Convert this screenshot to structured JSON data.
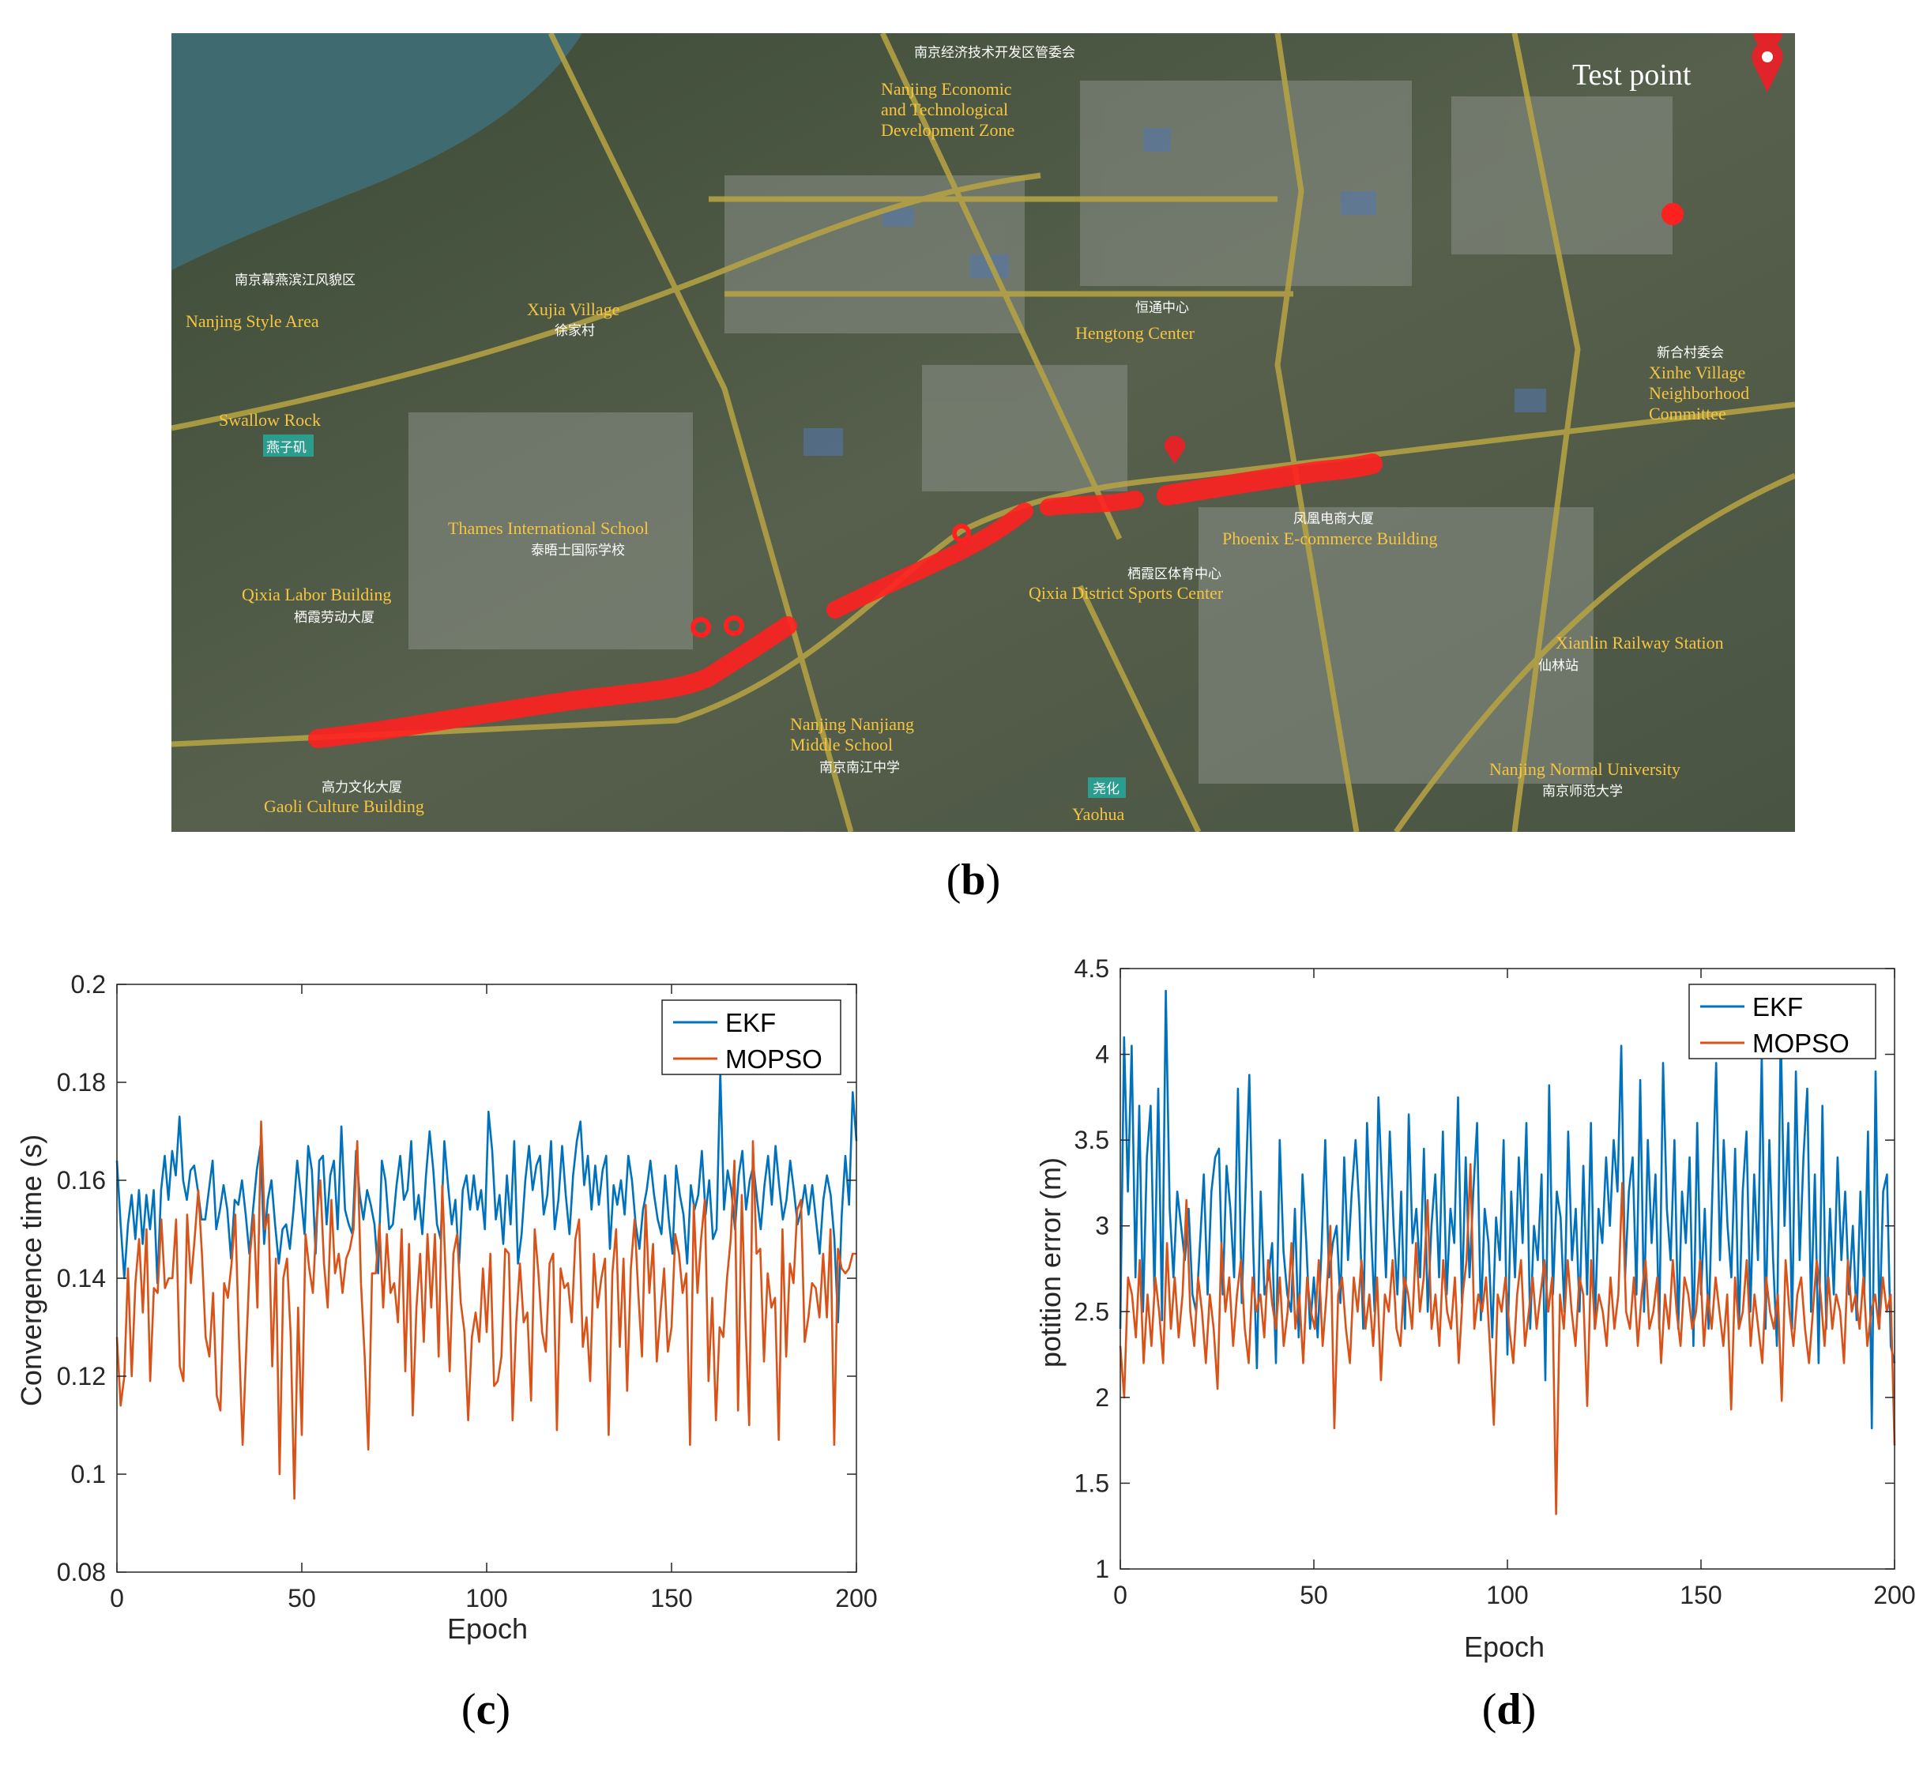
{
  "map": {
    "test_point_label": "Test point",
    "place_labels": [
      {
        "en": "Nanjing Economic and Technological Development Zone",
        "cn": "南京经济技术开发区管委会"
      },
      {
        "en": "Nanjing Style Area",
        "cn": "南京幕燕滨江风貌区"
      },
      {
        "en": "Xujia Village",
        "cn": "徐家村"
      },
      {
        "en": "Swallow Rock",
        "cn": "燕子矶"
      },
      {
        "en": "Hengtong Center",
        "cn": "恒通中心"
      },
      {
        "en": "Xinhe Village Neighborhood Committee",
        "cn": "新合村委会"
      },
      {
        "en": "Thames International School",
        "cn": "泰晤士国际学校"
      },
      {
        "en": "Phoenix E-commerce Building",
        "cn": "凤凰电商大厦"
      },
      {
        "en": "Qixia Labor Building",
        "cn": "栖霞劳动大厦"
      },
      {
        "en": "Qixia District Sports Center",
        "cn": "栖霞区体育中心"
      },
      {
        "en": "Xianlin Railway Station",
        "cn": "仙林站"
      },
      {
        "en": "Nanjing Nanjiang Middle School",
        "cn": "南京南江中学"
      },
      {
        "en": "Nanjing Normal University",
        "cn": "南京师范大学"
      },
      {
        "en": "Gaoli Culture Building",
        "cn": "高力文化大厦"
      },
      {
        "en": "Yaohua",
        "cn": "尧化"
      }
    ],
    "caption": "b"
  },
  "colors": {
    "ekf": "#0072BD",
    "mopso": "#D95319",
    "track": "#ff2020"
  },
  "chart_data": [
    {
      "type": "line",
      "caption": "c",
      "xlabel": "Epoch",
      "ylabel": "Convergence time (s)",
      "xlim": [
        0,
        200
      ],
      "ylim": [
        0.08,
        0.2
      ],
      "xticks": [
        0,
        50,
        100,
        150,
        200
      ],
      "yticks": [
        0.08,
        0.1,
        0.12,
        0.14,
        0.16,
        0.18,
        0.2
      ],
      "legend": {
        "position": "top-right",
        "entries": [
          "EKF",
          "MOPSO"
        ]
      },
      "series": [
        {
          "name": "EKF",
          "values": [
            0.164,
            0.151,
            0.14,
            0.151,
            0.157,
            0.148,
            0.158,
            0.147,
            0.157,
            0.15,
            0.158,
            0.139,
            0.158,
            0.165,
            0.156,
            0.166,
            0.161,
            0.173,
            0.16,
            0.156,
            0.162,
            0.163,
            0.158,
            0.152,
            0.152,
            0.158,
            0.164,
            0.15,
            0.154,
            0.159,
            0.154,
            0.144,
            0.156,
            0.155,
            0.16,
            0.153,
            0.145,
            0.154,
            0.162,
            0.167,
            0.147,
            0.156,
            0.16,
            0.151,
            0.143,
            0.15,
            0.151,
            0.146,
            0.154,
            0.164,
            0.157,
            0.149,
            0.167,
            0.162,
            0.145,
            0.164,
            0.165,
            0.151,
            0.161,
            0.164,
            0.15,
            0.171,
            0.154,
            0.151,
            0.149,
            0.166,
            0.157,
            0.152,
            0.158,
            0.155,
            0.151,
            0.141,
            0.164,
            0.16,
            0.15,
            0.151,
            0.159,
            0.165,
            0.156,
            0.158,
            0.168,
            0.152,
            0.157,
            0.149,
            0.161,
            0.17,
            0.162,
            0.151,
            0.148,
            0.168,
            0.159,
            0.151,
            0.156,
            0.143,
            0.158,
            0.161,
            0.154,
            0.161,
            0.154,
            0.158,
            0.15,
            0.174,
            0.166,
            0.152,
            0.157,
            0.147,
            0.161,
            0.151,
            0.168,
            0.143,
            0.149,
            0.16,
            0.167,
            0.158,
            0.163,
            0.165,
            0.153,
            0.157,
            0.168,
            0.15,
            0.156,
            0.167,
            0.157,
            0.149,
            0.161,
            0.168,
            0.172,
            0.159,
            0.165,
            0.154,
            0.163,
            0.155,
            0.162,
            0.165,
            0.146,
            0.159,
            0.155,
            0.16,
            0.153,
            0.165,
            0.16,
            0.151,
            0.146,
            0.154,
            0.158,
            0.164,
            0.157,
            0.152,
            0.149,
            0.161,
            0.152,
            0.145,
            0.163,
            0.157,
            0.153,
            0.143,
            0.159,
            0.154,
            0.157,
            0.166,
            0.153,
            0.16,
            0.148,
            0.15,
            0.182,
            0.154,
            0.162,
            0.158,
            0.15,
            0.161,
            0.166,
            0.154,
            0.16,
            0.163,
            0.156,
            0.15,
            0.159,
            0.165,
            0.155,
            0.167,
            0.159,
            0.152,
            0.156,
            0.164,
            0.158,
            0.151,
            0.154,
            0.159,
            0.153,
            0.159,
            0.152,
            0.145,
            0.156,
            0.161,
            0.157,
            0.148,
            0.131,
            0.153,
            0.165,
            0.155,
            0.178,
            0.168
          ]
        },
        {
          "name": "MOPSO",
          "values": [
            0.128,
            0.114,
            0.12,
            0.142,
            0.12,
            0.139,
            0.148,
            0.133,
            0.15,
            0.119,
            0.138,
            0.137,
            0.152,
            0.138,
            0.14,
            0.14,
            0.152,
            0.122,
            0.119,
            0.153,
            0.139,
            0.148,
            0.158,
            0.145,
            0.128,
            0.124,
            0.137,
            0.116,
            0.113,
            0.139,
            0.136,
            0.143,
            0.153,
            0.128,
            0.106,
            0.126,
            0.145,
            0.153,
            0.134,
            0.172,
            0.15,
            0.153,
            0.122,
            0.144,
            0.1,
            0.14,
            0.144,
            0.128,
            0.095,
            0.134,
            0.108,
            0.149,
            0.142,
            0.137,
            0.152,
            0.16,
            0.143,
            0.134,
            0.156,
            0.141,
            0.145,
            0.137,
            0.144,
            0.146,
            0.15,
            0.168,
            0.139,
            0.124,
            0.105,
            0.141,
            0.141,
            0.151,
            0.134,
            0.149,
            0.137,
            0.139,
            0.131,
            0.15,
            0.121,
            0.147,
            0.112,
            0.134,
            0.145,
            0.127,
            0.149,
            0.134,
            0.149,
            0.124,
            0.159,
            0.139,
            0.121,
            0.145,
            0.149,
            0.135,
            0.129,
            0.111,
            0.128,
            0.133,
            0.127,
            0.142,
            0.129,
            0.145,
            0.118,
            0.119,
            0.124,
            0.146,
            0.145,
            0.111,
            0.131,
            0.143,
            0.131,
            0.133,
            0.115,
            0.15,
            0.141,
            0.129,
            0.125,
            0.143,
            0.145,
            0.109,
            0.142,
            0.138,
            0.139,
            0.131,
            0.148,
            0.152,
            0.126,
            0.132,
            0.119,
            0.145,
            0.134,
            0.14,
            0.144,
            0.108,
            0.141,
            0.15,
            0.126,
            0.144,
            0.117,
            0.142,
            0.152,
            0.137,
            0.124,
            0.155,
            0.137,
            0.147,
            0.123,
            0.133,
            0.142,
            0.125,
            0.13,
            0.149,
            0.145,
            0.137,
            0.141,
            0.106,
            0.155,
            0.137,
            0.148,
            0.156,
            0.119,
            0.136,
            0.111,
            0.13,
            0.128,
            0.14,
            0.148,
            0.164,
            0.113,
            0.157,
            0.131,
            0.11,
            0.168,
            0.145,
            0.146,
            0.123,
            0.141,
            0.134,
            0.136,
            0.107,
            0.15,
            0.124,
            0.143,
            0.139,
            0.154,
            0.156,
            0.127,
            0.132,
            0.139,
            0.138,
            0.132,
            0.145,
            0.132,
            0.15,
            0.106,
            0.146,
            0.142,
            0.141,
            0.142,
            0.145,
            0.145
          ]
        }
      ]
    },
    {
      "type": "line",
      "caption": "d",
      "xlabel": "Epoch",
      "ylabel": "potition error (m)",
      "xlim": [
        0,
        200
      ],
      "ylim": [
        1,
        4.5
      ],
      "xticks": [
        0,
        50,
        100,
        150,
        200
      ],
      "yticks": [
        1,
        1.5,
        2,
        2.5,
        3,
        3.5,
        4,
        4.5
      ],
      "legend": {
        "position": "top-right",
        "entries": [
          "EKF",
          "MOPSO"
        ]
      },
      "series": [
        {
          "name": "EKF",
          "values": [
            2.4,
            4.1,
            3.2,
            4.05,
            2.7,
            3.7,
            2.5,
            3.4,
            3.7,
            2.6,
            3.8,
            2.45,
            4.37,
            3.1,
            2.7,
            3.2,
            3.0,
            2.8,
            3.1,
            2.6,
            2.5,
            2.9,
            3.3,
            2.6,
            3.2,
            3.4,
            3.45,
            2.6,
            3.35,
            3.1,
            2.7,
            3.8,
            2.55,
            3.2,
            3.88,
            2.9,
            2.17,
            3.2,
            2.6,
            2.7,
            2.9,
            2.2,
            3.5,
            2.85,
            2.6,
            2.5,
            3.1,
            2.35,
            3.3,
            2.9,
            2.4,
            2.7,
            2.35,
            2.85,
            3.5,
            2.7,
            2.9,
            3.0,
            2.55,
            3.4,
            2.8,
            3.2,
            3.5,
            3.1,
            2.4,
            3.6,
            3.0,
            2.5,
            3.75,
            3.2,
            2.7,
            3.55,
            3.0,
            2.6,
            3.2,
            2.4,
            3.65,
            2.9,
            3.1,
            2.7,
            3.45,
            2.5,
            3.0,
            3.3,
            2.7,
            3.55,
            2.6,
            3.1,
            2.9,
            3.75,
            2.55,
            3.4,
            2.7,
            3.2,
            3.6,
            2.45,
            3.1,
            2.9,
            2.35,
            3.05,
            2.8,
            3.5,
            2.25,
            3.2,
            2.7,
            3.4,
            2.9,
            3.6,
            2.4,
            3.0,
            2.8,
            3.3,
            2.1,
            3.82,
            2.6,
            3.2,
            3.05,
            2.5,
            3.55,
            2.8,
            3.1,
            2.5,
            3.35,
            2.6,
            3.6,
            2.4,
            3.1,
            2.9,
            3.4,
            3.0,
            3.5,
            3.2,
            4.05,
            2.7,
            3.2,
            3.4,
            2.6,
            3.85,
            2.5,
            3.5,
            2.9,
            3.3,
            2.4,
            3.95,
            3.1,
            2.8,
            3.5,
            2.4,
            3.2,
            2.9,
            3.4,
            2.3,
            3.6,
            2.6,
            3.1,
            2.4,
            3.2,
            3.95,
            2.8,
            3.5,
            3.0,
            2.7,
            3.45,
            2.4,
            3.2,
            3.55,
            2.5,
            3.3,
            2.8,
            4.0,
            2.4,
            3.5,
            2.8,
            2.3,
            4.15,
            3.0,
            3.6,
            2.4,
            3.9,
            2.8,
            3.4,
            3.8,
            2.5,
            3.3,
            2.2,
            3.7,
            2.4,
            3.1,
            2.6,
            3.4,
            2.8,
            3.2,
            2.6,
            3.0,
            2.45,
            3.2,
            2.6,
            3.55,
            1.82,
            3.9,
            2.4,
            3.2,
            3.3,
            2.3,
            2.2
          ]
        },
        {
          "name": "MOPSO",
          "values": [
            2.3,
            2.0,
            2.7,
            2.6,
            2.35,
            2.8,
            2.2,
            2.6,
            2.3,
            2.7,
            2.5,
            2.2,
            2.9,
            2.4,
            2.7,
            2.35,
            2.6,
            3.15,
            2.5,
            2.3,
            2.7,
            2.5,
            2.2,
            2.6,
            2.4,
            2.05,
            2.9,
            2.5,
            2.7,
            2.3,
            2.6,
            2.8,
            2.4,
            2.2,
            2.7,
            2.5,
            2.6,
            2.35,
            2.8,
            2.55,
            2.4,
            2.7,
            2.3,
            2.5,
            2.9,
            2.4,
            2.6,
            2.2,
            2.7,
            2.5,
            2.4,
            2.8,
            2.3,
            2.6,
            3.0,
            1.82,
            2.6,
            2.7,
            2.4,
            2.2,
            2.7,
            2.5,
            2.8,
            2.4,
            2.6,
            2.3,
            2.7,
            2.1,
            2.6,
            2.5,
            2.8,
            2.4,
            2.3,
            2.7,
            2.6,
            2.4,
            2.9,
            2.5,
            2.7,
            3.15,
            2.4,
            2.6,
            2.3,
            2.8,
            2.5,
            2.4,
            2.7,
            2.2,
            2.6,
            2.8,
            3.36,
            2.4,
            2.6,
            2.5,
            2.7,
            2.3,
            1.84,
            2.6,
            2.5,
            2.7,
            2.4,
            2.2,
            2.6,
            2.8,
            2.3,
            2.5,
            2.7,
            2.4,
            2.6,
            2.8,
            2.5,
            2.7,
            1.32,
            2.6,
            2.4,
            2.8,
            2.5,
            2.3,
            2.7,
            2.6,
            1.95,
            2.8,
            2.4,
            2.6,
            2.5,
            2.3,
            2.7,
            2.4,
            2.6,
            3.25,
            2.5,
            2.4,
            2.7,
            2.3,
            2.6,
            2.8,
            2.4,
            2.5,
            2.7,
            2.2,
            2.6,
            2.4,
            2.8,
            2.5,
            2.3,
            2.7,
            2.6,
            2.4,
            2.5,
            2.8,
            2.3,
            2.6,
            2.4,
            2.7,
            2.5,
            2.3,
            2.6,
            1.93,
            2.7,
            2.4,
            2.5,
            2.8,
            2.3,
            2.6,
            2.4,
            2.2,
            2.7,
            2.5,
            2.4,
            2.6,
            1.98,
            2.8,
            2.5,
            2.3,
            2.6,
            2.7,
            2.4,
            2.2,
            2.5,
            2.8,
            2.6,
            2.3,
            2.7,
            2.4,
            2.6,
            2.5,
            2.2,
            2.8,
            2.5,
            2.6,
            2.4,
            2.7,
            2.3,
            2.5,
            2.6,
            2.4,
            2.7,
            2.5,
            2.6,
            1.72
          ]
        }
      ]
    }
  ]
}
